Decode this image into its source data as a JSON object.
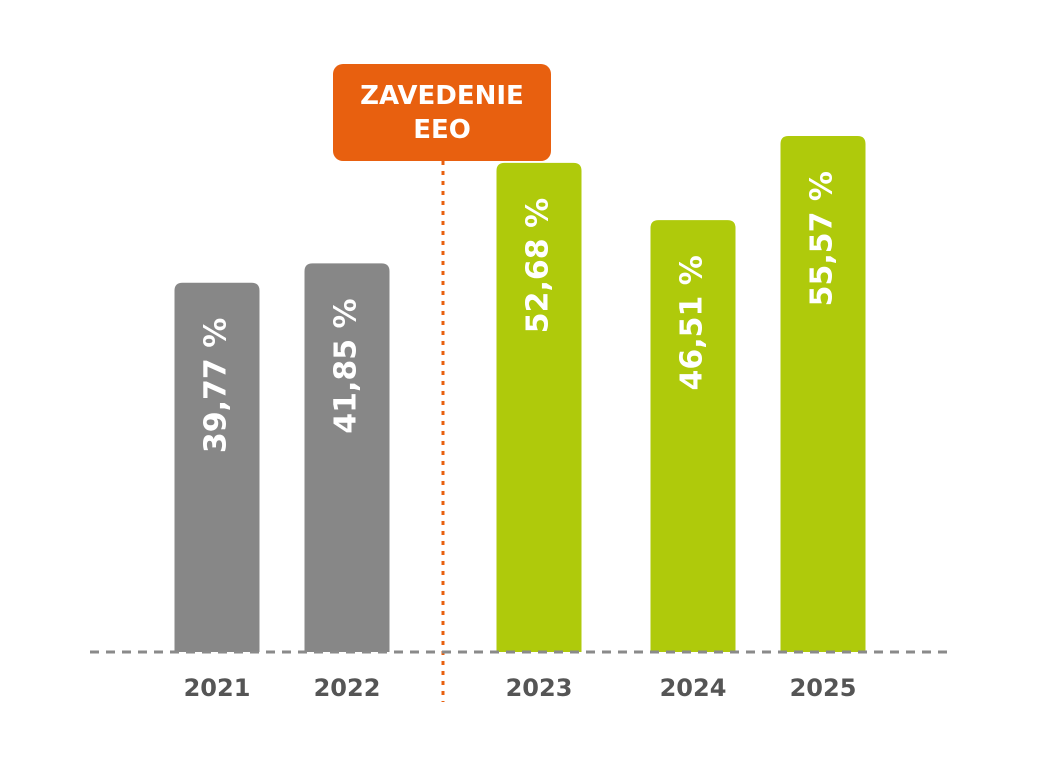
{
  "chart_data": {
    "type": "bar",
    "categories": [
      "2021",
      "2022",
      "2023",
      "2024",
      "2025"
    ],
    "values": [
      39.77,
      41.85,
      52.68,
      46.51,
      55.57
    ],
    "value_labels": [
      "39,77 %",
      "41,85 %",
      "52,68 %",
      "46,51 %",
      "55,57 %"
    ],
    "colors": [
      "#878787",
      "#878787",
      "#afca0b",
      "#afca0b",
      "#afca0b"
    ],
    "annotation": "ZAVEDENIE EEO"
  }
}
